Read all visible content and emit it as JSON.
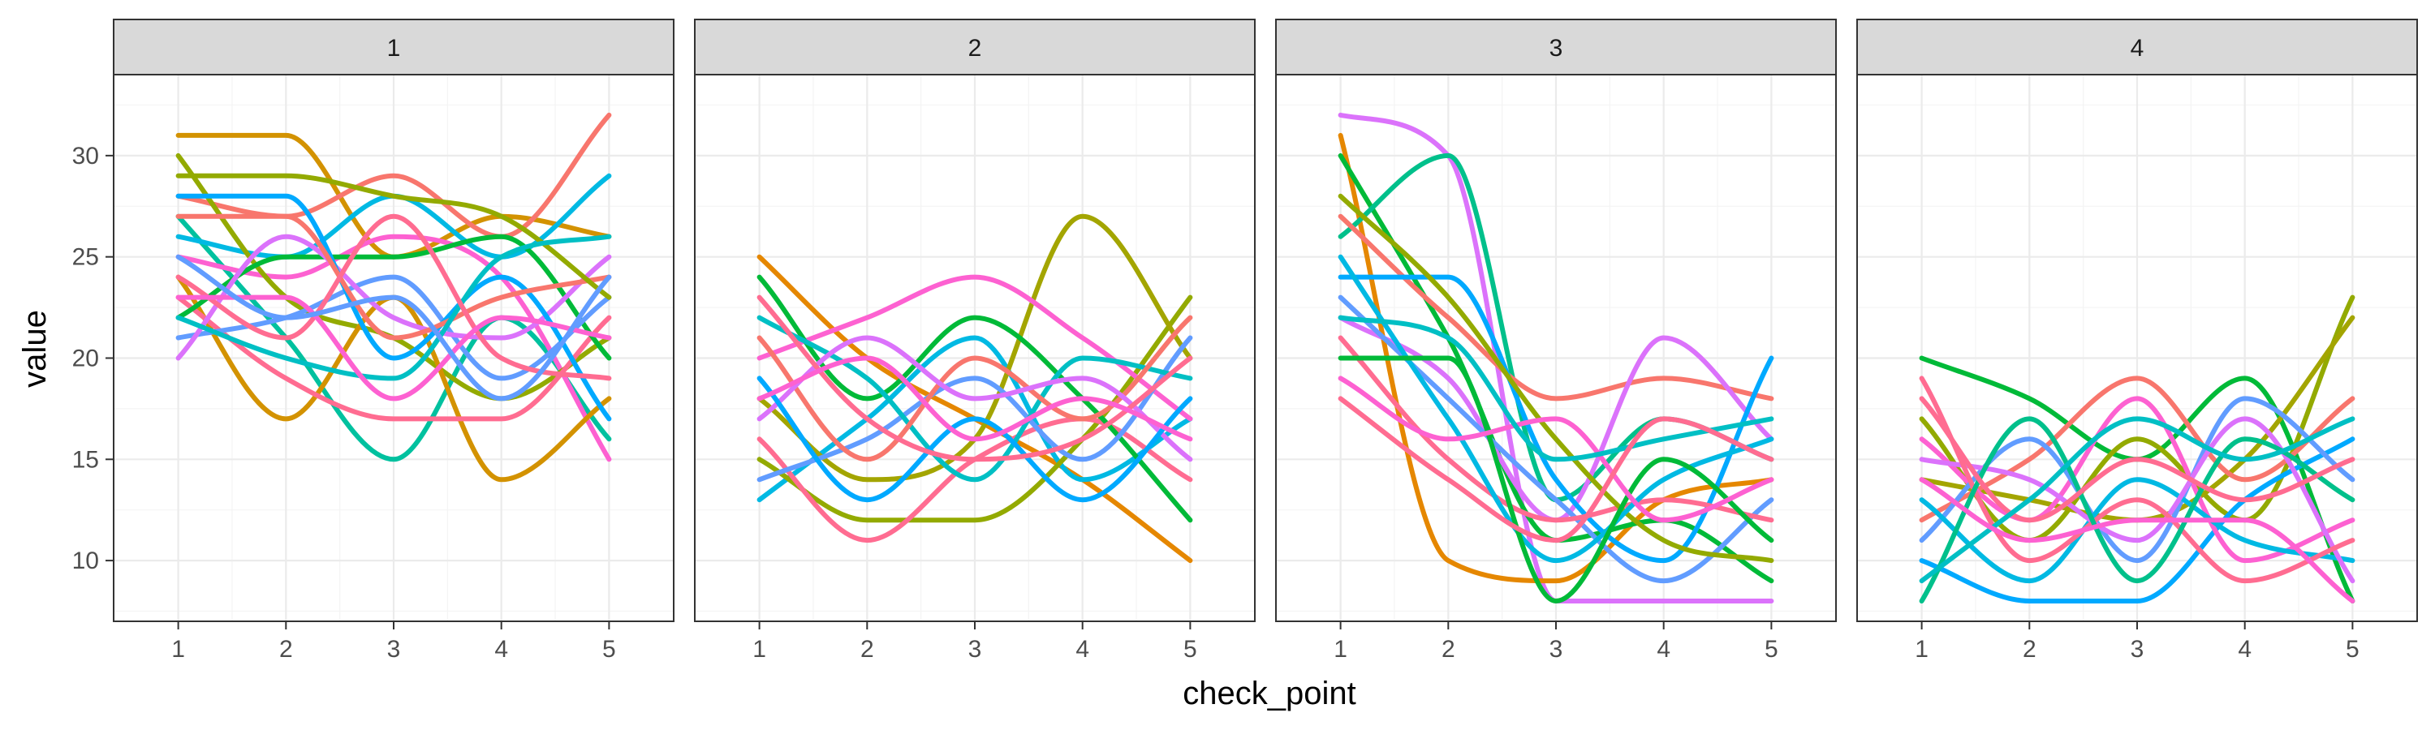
{
  "chart_data": {
    "type": "line",
    "facet_by": "panel",
    "x_label": "check_point",
    "y_label": "value",
    "x_ticks": [
      1,
      2,
      3,
      4,
      5
    ],
    "y_ticks": [
      10,
      15,
      20,
      25,
      30
    ],
    "ylim": [
      7,
      34
    ],
    "xlim": [
      0.4,
      5.6
    ],
    "grid": true,
    "legend": "none",
    "panels": [
      {
        "label": "1",
        "series": [
          {
            "color": "#d39200",
            "values": [
              31,
              31,
              25,
              27,
              26
            ]
          },
          {
            "color": "#f8766d",
            "values": [
              28,
              27,
              29,
              26,
              32
            ]
          },
          {
            "color": "#00c19f",
            "values": [
              27,
              21,
              15,
              22,
              16
            ]
          },
          {
            "color": "#00b9e3",
            "values": [
              26,
              25,
              28,
              25,
              29
            ]
          },
          {
            "color": "#fd61d1",
            "values": [
              25,
              24,
              26,
              24,
              15
            ]
          },
          {
            "color": "#93aa00",
            "values": [
              30,
              23,
              21,
              18,
              21
            ]
          },
          {
            "color": "#d39200",
            "values": [
              24,
              17,
              23,
              14,
              18
            ]
          },
          {
            "color": "#ff6c91",
            "values": [
              23,
              19,
              17,
              17,
              22
            ]
          },
          {
            "color": "#00ba38",
            "values": [
              22,
              25,
              25,
              26,
              20
            ]
          },
          {
            "color": "#619cff",
            "values": [
              21,
              22,
              24,
              19,
              23
            ]
          },
          {
            "color": "#db72fb",
            "values": [
              20,
              26,
              22,
              21,
              25
            ]
          },
          {
            "color": "#00a9ff",
            "values": [
              28,
              28,
              20,
              24,
              17
            ]
          },
          {
            "color": "#f8766d",
            "values": [
              27,
              27,
              21,
              23,
              24
            ]
          },
          {
            "color": "#93aa00",
            "values": [
              29,
              29,
              28,
              27,
              23
            ]
          },
          {
            "color": "#00bfc4",
            "values": [
              22,
              20,
              19,
              25,
              26
            ]
          },
          {
            "color": "#ff6c91",
            "values": [
              24,
              21,
              27,
              20,
              19
            ]
          },
          {
            "color": "#fd61d1",
            "values": [
              23,
              23,
              18,
              22,
              21
            ]
          },
          {
            "color": "#619cff",
            "values": [
              25,
              22,
              23,
              18,
              24
            ]
          }
        ]
      },
      {
        "label": "2",
        "series": [
          {
            "color": "#e58700",
            "values": [
              25,
              20,
              17,
              14,
              10
            ]
          },
          {
            "color": "#00b9e3",
            "values": [
              13,
              17,
              21,
              14,
              17
            ]
          },
          {
            "color": "#93aa00",
            "values": [
              15,
              12,
              12,
              16,
              23
            ]
          },
          {
            "color": "#a3a500",
            "values": [
              18,
              14,
              16,
              27,
              20
            ]
          },
          {
            "color": "#fd61d1",
            "values": [
              20,
              22,
              24,
              21,
              17
            ]
          },
          {
            "color": "#ff6c91",
            "values": [
              16,
              11,
              15,
              17,
              14
            ]
          },
          {
            "color": "#00ba38",
            "values": [
              24,
              18,
              22,
              18,
              12
            ]
          },
          {
            "color": "#619cff",
            "values": [
              14,
              16,
              19,
              15,
              21
            ]
          },
          {
            "color": "#00bfc4",
            "values": [
              22,
              19,
              14,
              20,
              19
            ]
          },
          {
            "color": "#f8766d",
            "values": [
              21,
              15,
              20,
              17,
              22
            ]
          },
          {
            "color": "#db72fb",
            "values": [
              17,
              21,
              18,
              19,
              15
            ]
          },
          {
            "color": "#00a9ff",
            "values": [
              19,
              13,
              17,
              13,
              18
            ]
          },
          {
            "color": "#ff6c91",
            "values": [
              23,
              17,
              15,
              16,
              20
            ]
          },
          {
            "color": "#fd61d1",
            "values": [
              18,
              20,
              16,
              18,
              16
            ]
          }
        ]
      },
      {
        "label": "3",
        "series": [
          {
            "color": "#db72fb",
            "values": [
              32,
              30,
              8,
              8,
              8
            ]
          },
          {
            "color": "#e58700",
            "values": [
              31,
              10,
              9,
              13,
              14
            ]
          },
          {
            "color": "#00ba38",
            "values": [
              30,
              21,
              11,
              12,
              9
            ]
          },
          {
            "color": "#00c08b",
            "values": [
              26,
              30,
              13,
              17,
              15
            ]
          },
          {
            "color": "#f8766d",
            "values": [
              27,
              22,
              18,
              19,
              18
            ]
          },
          {
            "color": "#db72fb",
            "values": [
              22,
              19,
              12,
              21,
              16
            ]
          },
          {
            "color": "#00a9ff",
            "values": [
              24,
              24,
              14,
              10,
              20
            ]
          },
          {
            "color": "#619cff",
            "values": [
              23,
              18,
              13,
              9,
              13
            ]
          },
          {
            "color": "#ff6c91",
            "values": [
              21,
              15,
              12,
              13,
              12
            ]
          },
          {
            "color": "#93aa00",
            "values": [
              28,
              23,
              16,
              11,
              10
            ]
          },
          {
            "color": "#00b9e3",
            "values": [
              25,
              17,
              10,
              14,
              16
            ]
          },
          {
            "color": "#00ba38",
            "values": [
              20,
              20,
              8,
              15,
              11
            ]
          },
          {
            "color": "#fd61d1",
            "values": [
              19,
              16,
              17,
              12,
              14
            ]
          },
          {
            "color": "#00bfc4",
            "values": [
              22,
              21,
              15,
              16,
              17
            ]
          },
          {
            "color": "#ff6c91",
            "values": [
              18,
              14,
              11,
              17,
              15
            ]
          }
        ]
      },
      {
        "label": "4",
        "series": [
          {
            "color": "#00ba38",
            "values": [
              20,
              18,
              15,
              19,
              8
            ]
          },
          {
            "color": "#93aa00",
            "values": [
              17,
              11,
              16,
              12,
              23
            ]
          },
          {
            "color": "#a3a500",
            "values": [
              14,
              13,
              12,
              15,
              22
            ]
          },
          {
            "color": "#f8766d",
            "values": [
              12,
              15,
              19,
              14,
              18
            ]
          },
          {
            "color": "#00a9ff",
            "values": [
              10,
              8,
              8,
              13,
              16
            ]
          },
          {
            "color": "#fd61d1",
            "values": [
              16,
              12,
              18,
              10,
              12
            ]
          },
          {
            "color": "#619cff",
            "values": [
              11,
              16,
              10,
              18,
              14
            ]
          },
          {
            "color": "#00b9e3",
            "values": [
              13,
              9,
              14,
              11,
              10
            ]
          },
          {
            "color": "#db72fb",
            "values": [
              15,
              14,
              11,
              17,
              9
            ]
          },
          {
            "color": "#ff6c91",
            "values": [
              19,
              10,
              13,
              9,
              11
            ]
          },
          {
            "color": "#00c08b",
            "values": [
              8,
              17,
              9,
              16,
              13
            ]
          },
          {
            "color": "#ff6c91",
            "values": [
              18,
              12,
              15,
              13,
              15
            ]
          },
          {
            "color": "#00bfc4",
            "values": [
              9,
              13,
              17,
              15,
              17
            ]
          },
          {
            "color": "#fd61d1",
            "values": [
              14,
              11,
              12,
              12,
              8
            ]
          }
        ]
      }
    ]
  }
}
